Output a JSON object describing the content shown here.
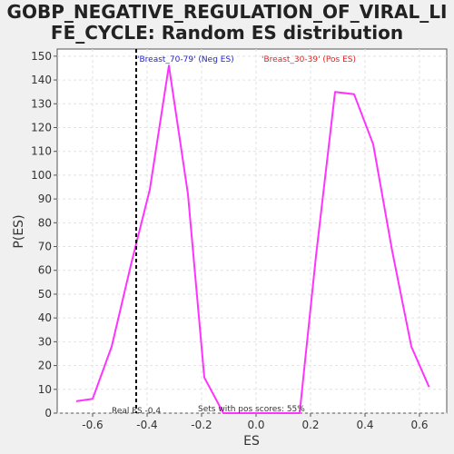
{
  "chart_data": {
    "type": "line",
    "title_lines": [
      "GOBP_NEGATIVE_REGULATION_OF_VIRAL_LI",
      "FE_CYCLE: Random ES distribution"
    ],
    "xlabel": "ES",
    "ylabel": "P(ES)",
    "xlim": [
      -0.73,
      0.7
    ],
    "ylim": [
      0,
      153
    ],
    "x_ticks": [
      -0.6,
      -0.4,
      -0.2,
      0.0,
      0.2,
      0.4,
      0.6
    ],
    "x_tick_labels": [
      "-0.6",
      "-0.4",
      "-0.2",
      "0.0",
      "0.2",
      "0.4",
      "0.6"
    ],
    "y_ticks": [
      0,
      10,
      20,
      30,
      40,
      50,
      60,
      70,
      80,
      90,
      100,
      110,
      120,
      130,
      140,
      150
    ],
    "grid": true,
    "series": [
      {
        "name": "",
        "color": "#ff33ff",
        "x": [
          -0.66,
          -0.6,
          -0.53,
          -0.46,
          -0.39,
          -0.32,
          -0.25,
          -0.19,
          -0.12,
          -0.05,
          0.02,
          0.09,
          0.16,
          0.22,
          0.29,
          0.36,
          0.43,
          0.5,
          0.57,
          0.635
        ],
        "y": [
          5,
          6,
          28,
          62,
          94,
          146,
          92,
          15,
          0,
          0,
          0,
          0,
          0,
          66,
          135,
          134,
          113,
          68,
          28,
          11
        ]
      }
    ],
    "legend": {
      "neg": {
        "text": "'Breast_70-79' (Neg ES)",
        "color": "#2222cc"
      },
      "pos": {
        "text": "'Breast_30-39' (Pos ES)",
        "color": "#dd2222"
      },
      "placement": "top"
    },
    "real_es": {
      "value": -0.44,
      "label": "Real ES -0.4"
    },
    "annotation": "Sets with pos scores: 55%"
  }
}
